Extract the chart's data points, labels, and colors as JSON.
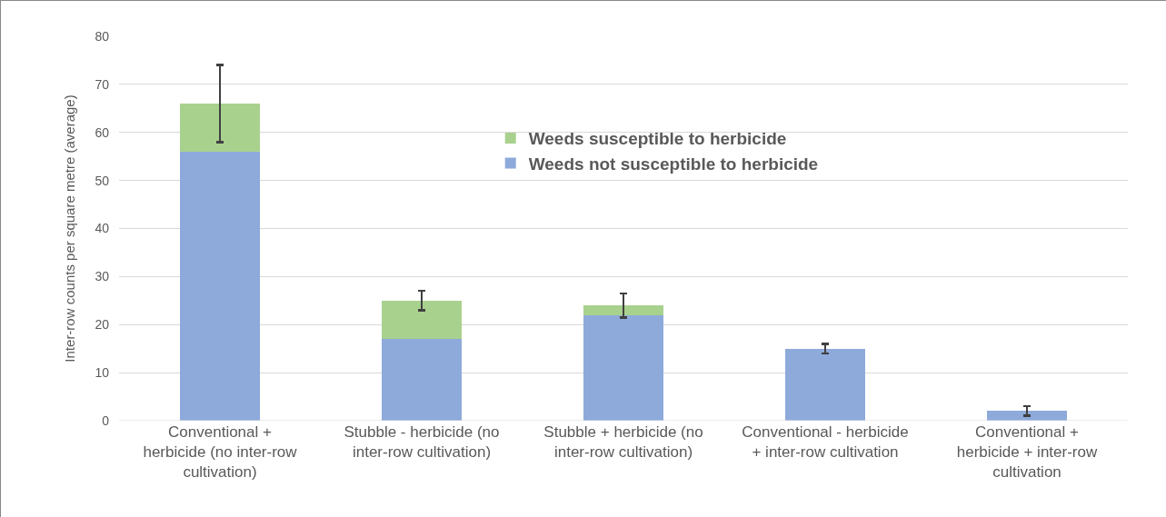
{
  "chart_data": {
    "type": "bar",
    "stacked": true,
    "ylabel": "Inter-row counts per square metre (average)",
    "categories": [
      "Conventional +\nherbicide (no inter-row\ncultivation)",
      "Stubble - herbicide (no\ninter-row cultivation)",
      "Stubble + herbicide (no\ninter-row cultivation)",
      "Conventional - herbicide\n+ inter-row cultivation",
      "Conventional +\nherbicide + inter-row\ncultivation"
    ],
    "series": [
      {
        "name": "Weeds not susceptible to herbicide",
        "color": "#8eaadb",
        "values": [
          56,
          17,
          22,
          15,
          2
        ]
      },
      {
        "name": "Weeds susceptible to herbicide",
        "color": "#a9d18e",
        "values": [
          10,
          8,
          2,
          0,
          0
        ],
        "errors": [
          8,
          2,
          2.5,
          1,
          1
        ]
      }
    ],
    "ylim": [
      0,
      80
    ],
    "yticks": [
      0,
      10,
      20,
      30,
      40,
      50,
      60,
      70,
      80
    ],
    "grid": "y",
    "legend": "top"
  }
}
